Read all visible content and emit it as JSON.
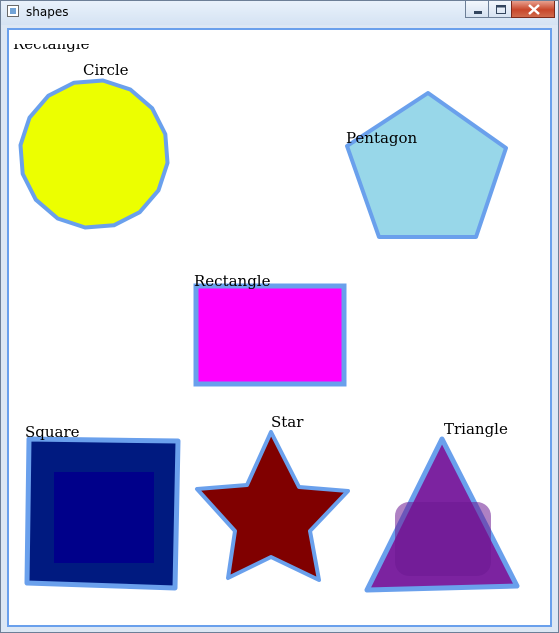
{
  "window": {
    "title": "shapes",
    "icons": {
      "app": "app-window-icon",
      "minimize": "minimize-icon",
      "maximize": "maximize-icon",
      "close": "close-icon"
    }
  },
  "canvas": {
    "overflow_label": "Rectangle",
    "shapes": {
      "circle": {
        "label": "Circle",
        "fill": "#ecff00",
        "stroke": "#6aa0ec"
      },
      "pentagon": {
        "label": "Pentagon",
        "fill": "#98d7e9",
        "stroke": "#6aa0ec"
      },
      "rectangle": {
        "label": "Rectangle",
        "fill": "#ff00ff",
        "stroke": "#6aa0ec"
      },
      "square": {
        "label": "Square",
        "fill": "#001a80",
        "inner_fill": "#00008a",
        "stroke": "#6aa0ec"
      },
      "star": {
        "label": "Star",
        "fill": "#800000",
        "stroke": "#6aa0ec"
      },
      "triangle": {
        "label": "Triangle",
        "fill": "#7c23a0",
        "stroke": "#6aa0ec"
      }
    }
  }
}
